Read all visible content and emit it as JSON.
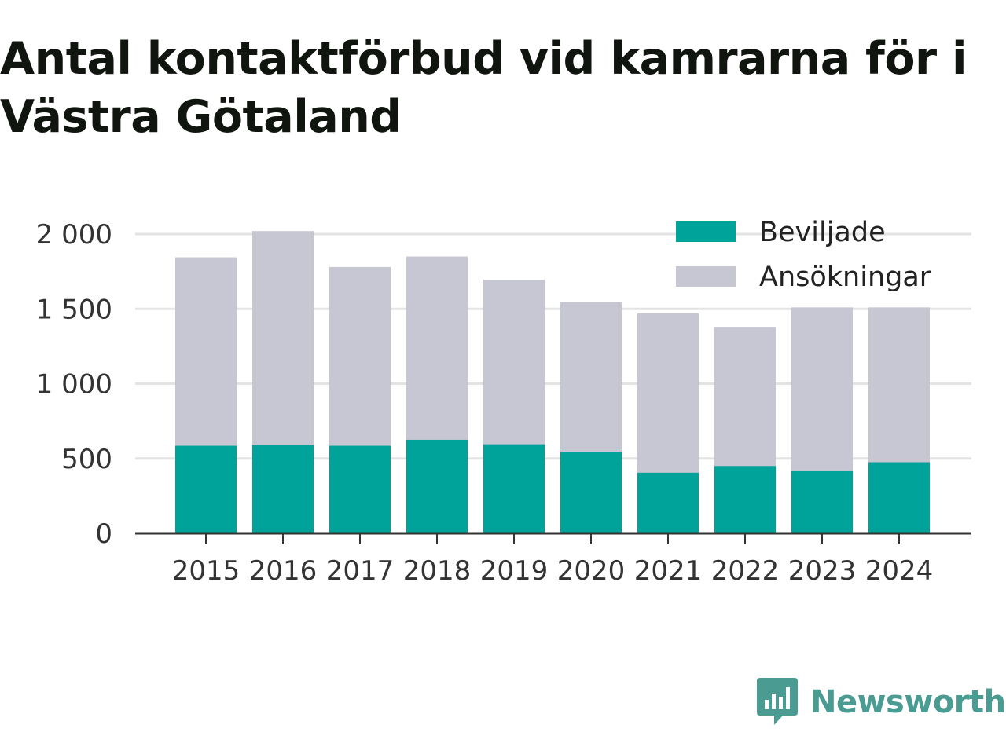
{
  "chart_data": {
    "type": "bar",
    "stacked": "overlay",
    "title": "Antal kontaktförbud vid kamrarna för i Västra Götaland",
    "categories": [
      "2015",
      "2016",
      "2017",
      "2018",
      "2019",
      "2020",
      "2021",
      "2022",
      "2023",
      "2024"
    ],
    "series": [
      {
        "name": "Beviljade",
        "color": "#00a39a",
        "values": [
          585,
          590,
          585,
          625,
          595,
          545,
          405,
          450,
          415,
          475
        ]
      },
      {
        "name": "Ansökningar",
        "color": "#c7c6d3",
        "values": [
          1845,
          2020,
          1780,
          1850,
          1695,
          1545,
          1470,
          1380,
          1510,
          1510
        ]
      }
    ],
    "yticks": [
      0,
      500,
      1000,
      1500,
      2000
    ],
    "ytick_labels": [
      "0",
      "500",
      "1 000",
      "1 500",
      "2 000"
    ],
    "ylim": [
      0,
      2000
    ],
    "xlabel": "",
    "ylabel": "",
    "grid": true,
    "legend": "top-right"
  },
  "brand": {
    "name": "Newsworthy",
    "icon": "newsworthy-logo-icon",
    "color": "#4a9c92"
  }
}
